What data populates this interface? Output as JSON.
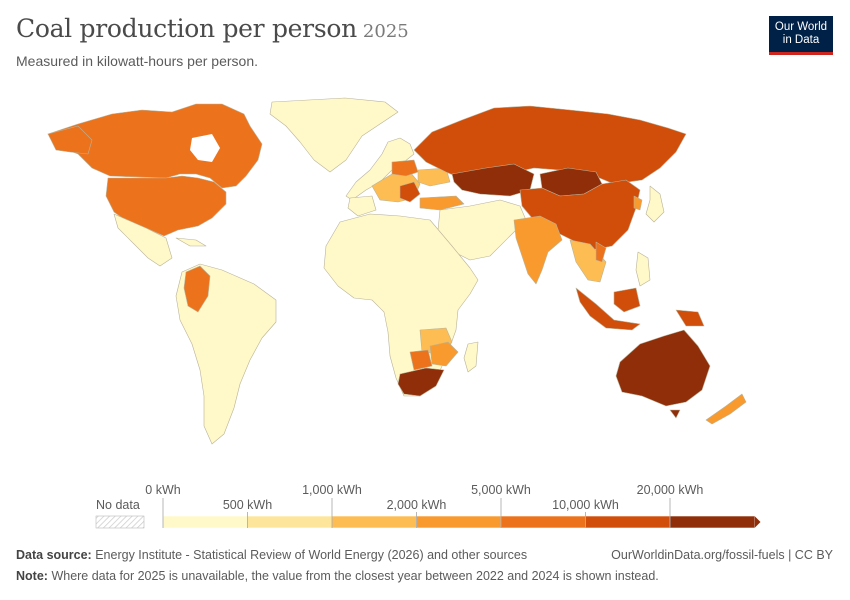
{
  "title": "Coal production per person",
  "title_year": "2025",
  "subtitle": "Measured in kilowatt-hours per person.",
  "logo": {
    "line1": "Our World",
    "line2": "in Data"
  },
  "legend": {
    "no_data_label": "No data",
    "upper_ticks": [
      "0 kWh",
      "1,000 kWh",
      "5,000 kWh",
      "20,000 kWh"
    ],
    "lower_ticks": [
      "500 kWh",
      "2,000 kWh",
      "10,000 kWh"
    ],
    "bin_colors": [
      "#fff8c8",
      "#fde69b",
      "#fdbd53",
      "#f99a2f",
      "#ec721c",
      "#d14d0a",
      "#8f2e09"
    ]
  },
  "colors": {
    "land_no_coal": "#fff8c8",
    "border": "#b9b39a",
    "no_data_hatch": "#cccccc"
  },
  "footer": {
    "source_label": "Data source:",
    "source_text": "Energy Institute - Statistical Review of World Energy (2026) and other sources",
    "url_text": "OurWorldinData.org/fossil-fuels | CC BY",
    "note_label": "Note:",
    "note_text": "Where data for 2025 is unavailable, the value from the closest year between 2022 and 2024 is shown instead."
  }
}
